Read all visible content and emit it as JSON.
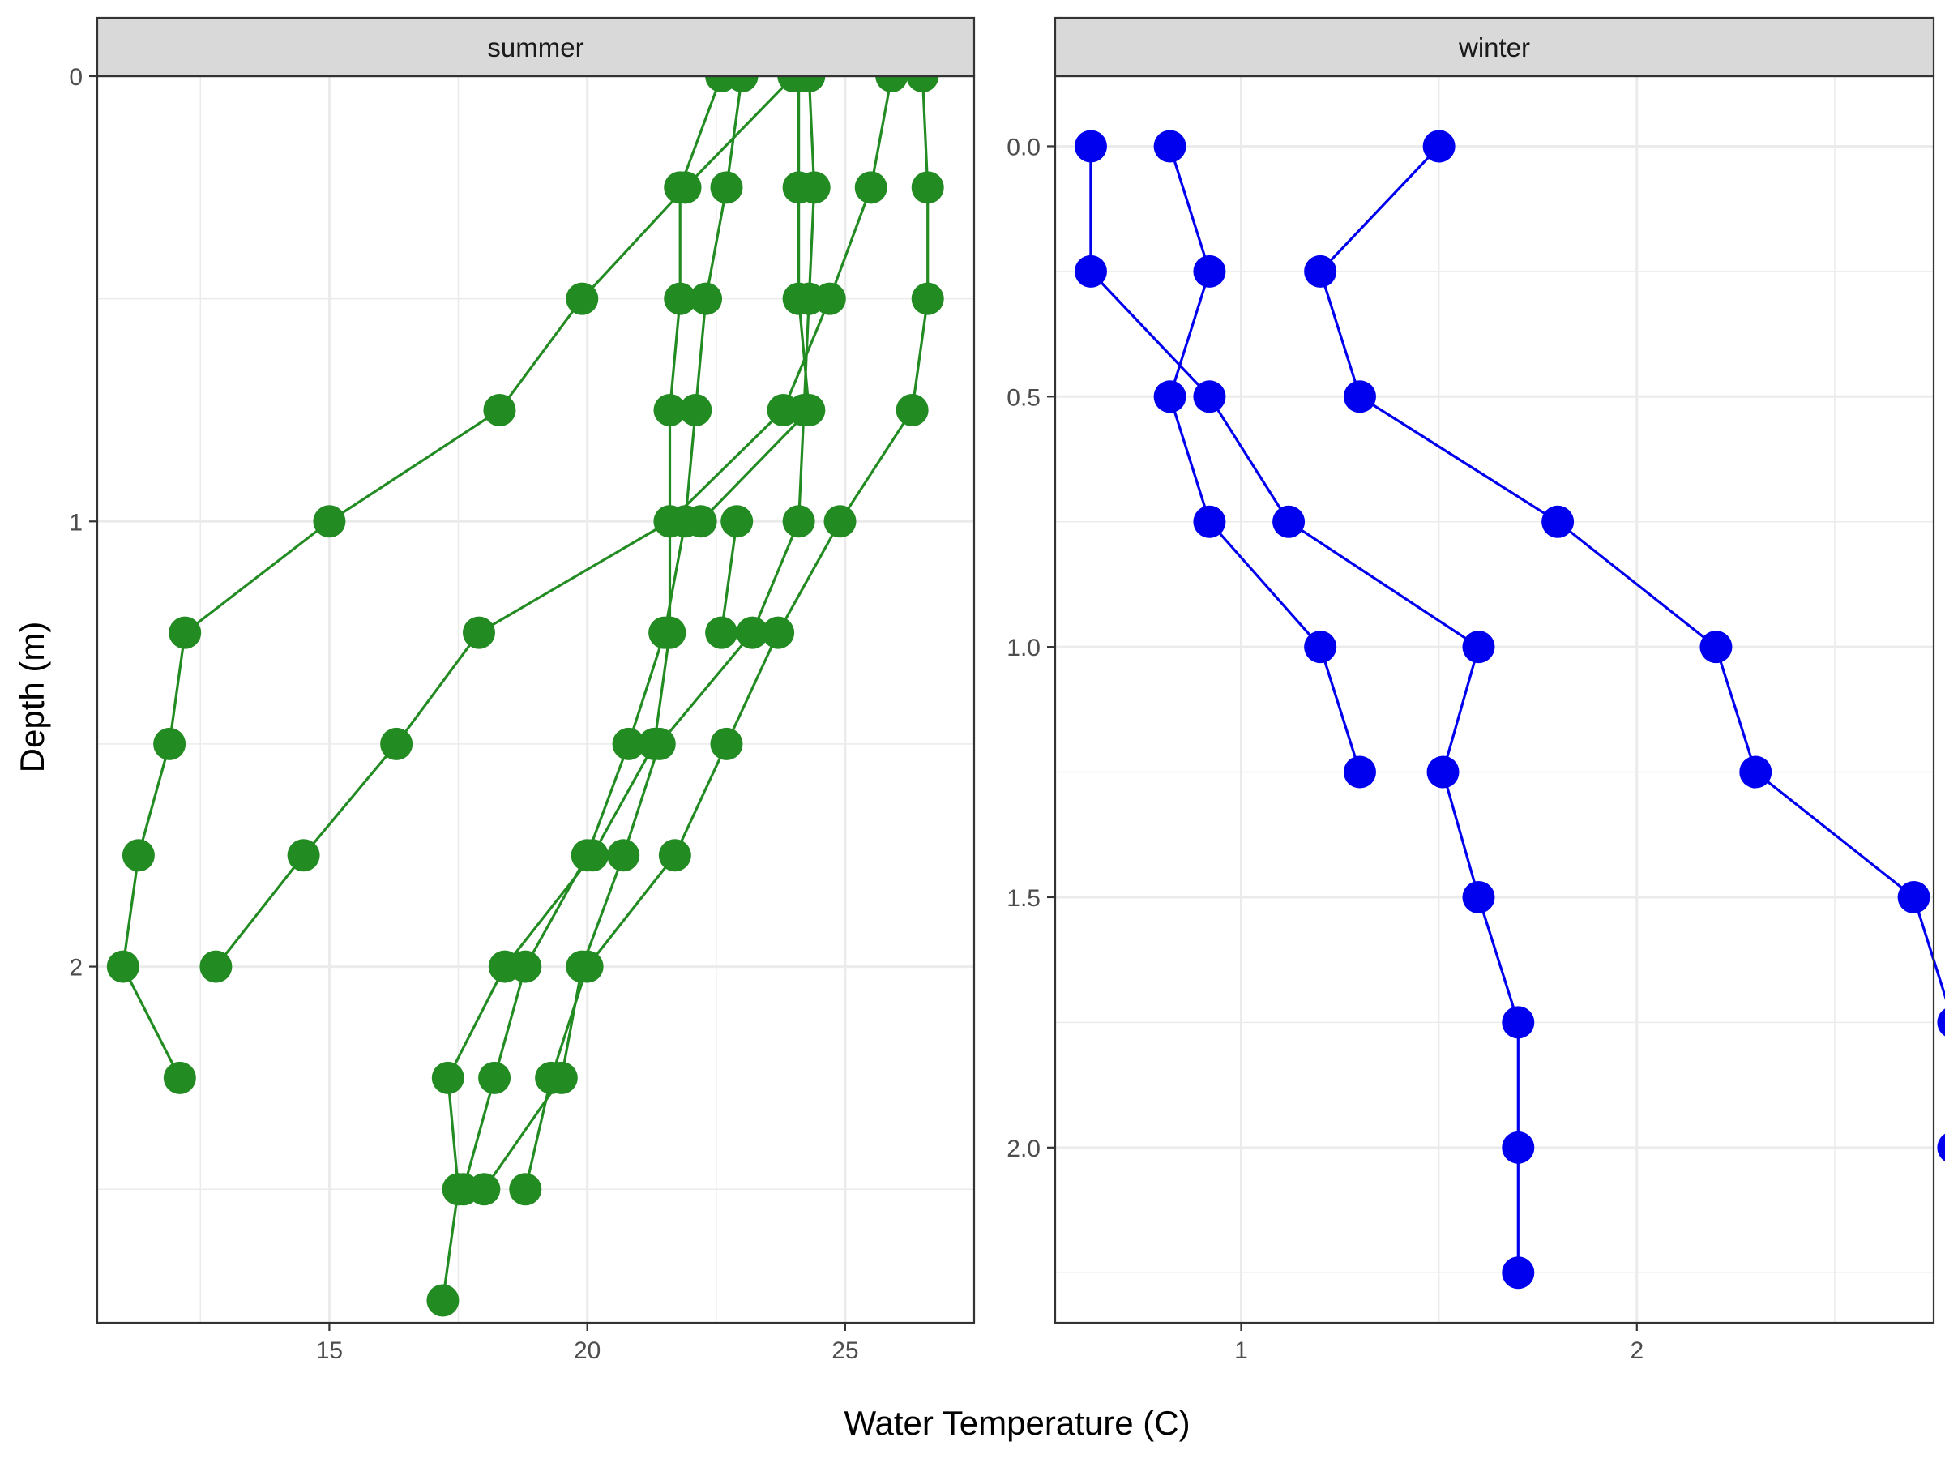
{
  "chart_data": {
    "type": "line",
    "xlabel": "Water Temperature (C)",
    "ylabel": "Depth (m)",
    "y_reversed": true,
    "grid": true,
    "colors": {
      "strip_fill": "#D9D9D9",
      "grid": "#EBEBEB",
      "panel_border": "#333333"
    },
    "panels": [
      {
        "strip_label": "summer",
        "color": "#228B22",
        "xlim": [
          10.5,
          27.5
        ],
        "ylim": [
          0,
          2.8
        ],
        "x_ticks": [
          {
            "v": 15,
            "label": "15"
          },
          {
            "v": 20,
            "label": "20"
          },
          {
            "v": 25,
            "label": "25"
          }
        ],
        "y_ticks": [
          {
            "v": 0,
            "label": "0"
          },
          {
            "v": 1,
            "label": "1"
          },
          {
            "v": 2,
            "label": "2"
          }
        ],
        "series": [
          {
            "points": [
              {
                "x": 24.0,
                "y": 0
              },
              {
                "x": 21.9,
                "y": 0.25
              },
              {
                "x": 19.9,
                "y": 0.5
              },
              {
                "x": 18.3,
                "y": 0.75
              },
              {
                "x": 15.0,
                "y": 1.0
              },
              {
                "x": 12.2,
                "y": 1.25
              },
              {
                "x": 11.9,
                "y": 1.5
              },
              {
                "x": 11.3,
                "y": 1.75
              },
              {
                "x": 11.0,
                "y": 2.0
              },
              {
                "x": 12.1,
                "y": 2.25
              }
            ]
          },
          {
            "points": [
              {
                "x": 26.5,
                "y": 0
              },
              {
                "x": 26.6,
                "y": 0.25
              },
              {
                "x": 26.6,
                "y": 0.5
              },
              {
                "x": 26.3,
                "y": 0.75
              },
              {
                "x": 24.9,
                "y": 1.0
              },
              {
                "x": 23.7,
                "y": 1.25
              },
              {
                "x": 22.7,
                "y": 1.5
              },
              {
                "x": 21.7,
                "y": 1.75
              },
              {
                "x": 20.0,
                "y": 2.0
              },
              {
                "x": 19.3,
                "y": 2.25
              },
              {
                "x": 18.8,
                "y": 2.5
              }
            ]
          },
          {
            "points": [
              {
                "x": 25.9,
                "y": 0
              },
              {
                "x": 25.5,
                "y": 0.25
              },
              {
                "x": 24.7,
                "y": 0.5
              },
              {
                "x": 23.8,
                "y": 0.75
              },
              {
                "x": 21.6,
                "y": 1.0
              },
              {
                "x": 17.9,
                "y": 1.25
              },
              {
                "x": 16.3,
                "y": 1.5
              },
              {
                "x": 14.5,
                "y": 1.75
              },
              {
                "x": 12.8,
                "y": 2.0
              }
            ]
          },
          {
            "points": [
              {
                "x": 22.6,
                "y": 0
              },
              {
                "x": 21.8,
                "y": 0.25
              },
              {
                "x": 21.8,
                "y": 0.5
              },
              {
                "x": 21.6,
                "y": 0.75
              },
              {
                "x": 21.6,
                "y": 1.0
              },
              {
                "x": 21.6,
                "y": 1.25
              },
              {
                "x": 21.3,
                "y": 1.5
              },
              {
                "x": 20.1,
                "y": 1.75
              },
              {
                "x": 18.4,
                "y": 2.0
              },
              {
                "x": 17.3,
                "y": 2.25
              },
              {
                "x": 17.5,
                "y": 2.5
              },
              {
                "x": 17.2,
                "y": 2.75
              }
            ]
          },
          {
            "points": [
              {
                "x": 23.0,
                "y": 0
              },
              {
                "x": 22.7,
                "y": 0.25
              },
              {
                "x": 22.3,
                "y": 0.5
              },
              {
                "x": 22.1,
                "y": 0.75
              },
              {
                "x": 21.9,
                "y": 1.0
              },
              {
                "x": 21.5,
                "y": 1.25
              },
              {
                "x": 20.8,
                "y": 1.5
              },
              {
                "x": 20.0,
                "y": 1.75
              },
              {
                "x": 18.8,
                "y": 2.0
              },
              {
                "x": 18.2,
                "y": 2.25
              },
              {
                "x": 17.6,
                "y": 2.5
              }
            ]
          },
          {
            "points": [
              {
                "x": 24.3,
                "y": 0
              },
              {
                "x": 24.4,
                "y": 0.25
              },
              {
                "x": 24.3,
                "y": 0.5
              },
              {
                "x": 24.2,
                "y": 0.75
              },
              {
                "x": 24.1,
                "y": 1.0
              },
              {
                "x": 23.2,
                "y": 1.25
              },
              {
                "x": 21.4,
                "y": 1.5
              },
              {
                "x": 20.7,
                "y": 1.75
              },
              {
                "x": 19.9,
                "y": 2.0
              },
              {
                "x": 19.5,
                "y": 2.25
              },
              {
                "x": 18.0,
                "y": 2.5
              }
            ]
          },
          {
            "points": [
              {
                "x": 24.1,
                "y": 0
              },
              {
                "x": 24.1,
                "y": 0.25
              },
              {
                "x": 24.1,
                "y": 0.5
              },
              {
                "x": 24.3,
                "y": 0.75
              },
              {
                "x": 22.2,
                "y": 1.0
              }
            ]
          },
          {
            "points": [
              {
                "x": 22.9,
                "y": 1.0
              },
              {
                "x": 22.6,
                "y": 1.25
              }
            ]
          }
        ]
      },
      {
        "strip_label": "winter",
        "color": "#0000EE",
        "xlim": [
          0.53,
          2.75
        ],
        "ylim": [
          -0.14,
          2.35
        ],
        "x_ticks": [
          {
            "v": 1,
            "label": "1"
          },
          {
            "v": 2,
            "label": "2"
          }
        ],
        "y_ticks": [
          {
            "v": 0,
            "label": "0.0"
          },
          {
            "v": 0.5,
            "label": "0.5"
          },
          {
            "v": 1.0,
            "label": "1.0"
          },
          {
            "v": 1.5,
            "label": "1.5"
          },
          {
            "v": 2.0,
            "label": "2.0"
          }
        ],
        "series": [
          {
            "points": [
              {
                "x": 0.62,
                "y": 0
              },
              {
                "x": 0.62,
                "y": 0.25
              },
              {
                "x": 0.92,
                "y": 0.5
              },
              {
                "x": 1.12,
                "y": 0.75
              },
              {
                "x": 1.6,
                "y": 1.0
              },
              {
                "x": 1.51,
                "y": 1.25
              },
              {
                "x": 1.6,
                "y": 1.5
              },
              {
                "x": 1.7,
                "y": 1.75
              },
              {
                "x": 1.7,
                "y": 2.0
              },
              {
                "x": 1.7,
                "y": 2.25
              }
            ]
          },
          {
            "points": [
              {
                "x": 0.82,
                "y": 0
              },
              {
                "x": 0.92,
                "y": 0.25
              },
              {
                "x": 0.82,
                "y": 0.5
              },
              {
                "x": 0.92,
                "y": 0.75
              },
              {
                "x": 1.2,
                "y": 1.0
              },
              {
                "x": 1.3,
                "y": 1.25
              }
            ]
          },
          {
            "points": [
              {
                "x": 1.5,
                "y": 0
              },
              {
                "x": 1.2,
                "y": 0.25
              },
              {
                "x": 1.3,
                "y": 0.5
              },
              {
                "x": 1.8,
                "y": 0.75
              },
              {
                "x": 2.2,
                "y": 1.0
              },
              {
                "x": 2.3,
                "y": 1.25
              },
              {
                "x": 2.7,
                "y": 1.5
              },
              {
                "x": 2.8,
                "y": 1.75
              },
              {
                "x": 2.8,
                "y": 2.0
              }
            ]
          }
        ]
      }
    ]
  }
}
